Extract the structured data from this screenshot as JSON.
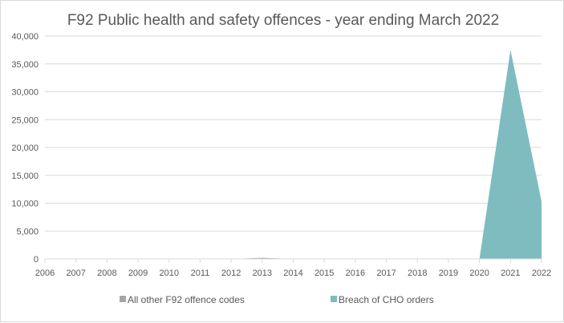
{
  "chart_data": {
    "type": "area",
    "stacked": true,
    "title": "F92 Public health and safety offences - year ending March 2022",
    "xlabel": "",
    "ylabel": "",
    "x": [
      "2006",
      "2007",
      "2008",
      "2009",
      "2010",
      "2011",
      "2012",
      "2013",
      "2014",
      "2015",
      "2016",
      "2017",
      "2018",
      "2019",
      "2020",
      "2021",
      "2022"
    ],
    "ylim": [
      0,
      40000
    ],
    "yticks": [
      0,
      5000,
      10000,
      15000,
      20000,
      25000,
      30000,
      35000,
      40000
    ],
    "ytick_labels": [
      "0",
      "5,000",
      "10,000",
      "15,000",
      "20,000",
      "25,000",
      "30,000",
      "35,000",
      "40,000"
    ],
    "grid": true,
    "legend_position": "bottom",
    "series": [
      {
        "name": "All other F92 offence codes",
        "color": "#a6a6a6",
        "values": [
          0,
          0,
          0,
          0,
          0,
          0,
          0,
          200,
          0,
          0,
          50,
          0,
          0,
          80,
          0,
          0,
          0
        ]
      },
      {
        "name": "Breach of CHO orders",
        "color": "#7ebcc0",
        "values": [
          0,
          0,
          0,
          0,
          0,
          0,
          0,
          0,
          0,
          0,
          0,
          0,
          0,
          0,
          0,
          37500,
          10300
        ]
      }
    ]
  }
}
